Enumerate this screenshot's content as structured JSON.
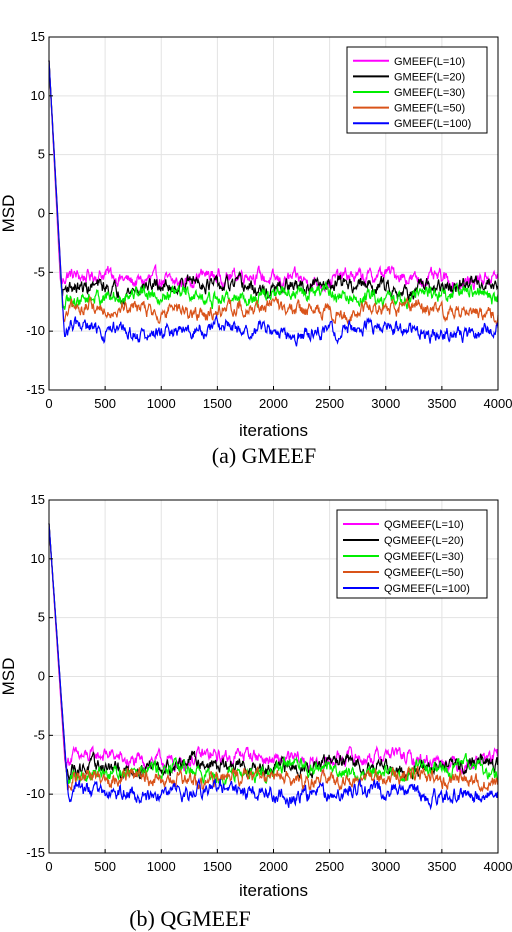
{
  "charts": [
    {
      "caption": "(a) GMEEF",
      "chart_data": {
        "type": "line",
        "xlabel": "iterations",
        "ylabel": "MSD",
        "xlim": [
          0,
          4000
        ],
        "ylim": [
          -15,
          15
        ],
        "xticks": [
          0,
          500,
          1000,
          1500,
          2000,
          2500,
          3000,
          3500,
          4000
        ],
        "yticks": [
          -15,
          -10,
          -5,
          0,
          5,
          10,
          15
        ],
        "grid": true,
        "legend_position": "top-right",
        "start_value": 13,
        "series": [
          {
            "name": "GMEEF(L=10)",
            "color": "#ff00ff",
            "steady": -5.5,
            "conv_end": 100
          },
          {
            "name": "GMEEF(L=20)",
            "color": "#000000",
            "steady": -6.2,
            "conv_end": 110
          },
          {
            "name": "GMEEF(L=30)",
            "color": "#00ee00",
            "steady": -7.0,
            "conv_end": 115
          },
          {
            "name": "GMEEF(L=50)",
            "color": "#d95319",
            "steady": -8.2,
            "conv_end": 125
          },
          {
            "name": "GMEEF(L=100)",
            "color": "#0000ff",
            "steady": -10.0,
            "conv_end": 135
          }
        ]
      }
    },
    {
      "caption": "(b) QGMEEF",
      "chart_data": {
        "type": "line",
        "xlabel": "iterations",
        "ylabel": "MSD",
        "xlim": [
          0,
          4000
        ],
        "ylim": [
          -15,
          15
        ],
        "xticks": [
          0,
          500,
          1000,
          1500,
          2000,
          2500,
          3000,
          3500,
          4000
        ],
        "yticks": [
          -15,
          -10,
          -5,
          0,
          5,
          10,
          15
        ],
        "grid": true,
        "legend_position": "top-right",
        "start_value": 13,
        "series": [
          {
            "name": "QGMEEF(L=10)",
            "color": "#ff00ff",
            "steady": -7.0,
            "conv_end": 140
          },
          {
            "name": "QGMEEF(L=20)",
            "color": "#000000",
            "steady": -7.6,
            "conv_end": 150
          },
          {
            "name": "QGMEEF(L=30)",
            "color": "#00ee00",
            "steady": -8.0,
            "conv_end": 155
          },
          {
            "name": "QGMEEF(L=50)",
            "color": "#d95319",
            "steady": -8.7,
            "conv_end": 160
          },
          {
            "name": "QGMEEF(L=100)",
            "color": "#0000ff",
            "steady": -9.9,
            "conv_end": 170
          }
        ]
      }
    }
  ]
}
